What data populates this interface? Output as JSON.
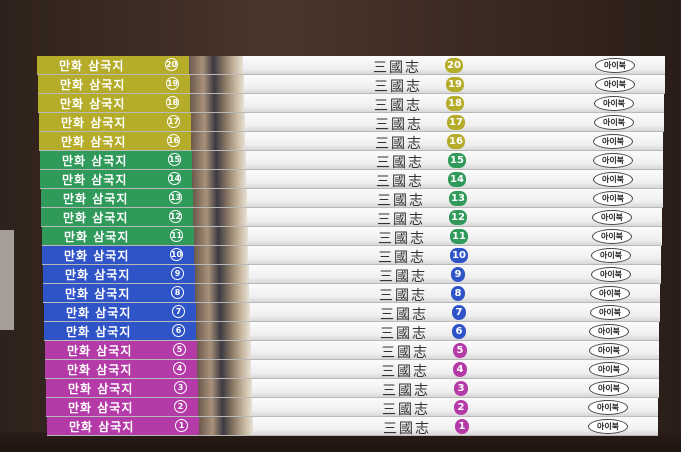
{
  "scene": "manhwa-samgukji-book-stack",
  "series_title": "만화 삼국지",
  "hanja_title": "三國志",
  "publisher": "아이북",
  "colors": {
    "olive": "#b5ad2a",
    "green": "#2f9a5a",
    "blue": "#2f54c8",
    "magenta": "#b43aa8"
  },
  "books": [
    {
      "volume": "20",
      "band": "olive"
    },
    {
      "volume": "19",
      "band": "olive"
    },
    {
      "volume": "18",
      "band": "olive"
    },
    {
      "volume": "17",
      "band": "olive"
    },
    {
      "volume": "16",
      "band": "olive"
    },
    {
      "volume": "15",
      "band": "green"
    },
    {
      "volume": "14",
      "band": "green"
    },
    {
      "volume": "13",
      "band": "green"
    },
    {
      "volume": "12",
      "band": "green"
    },
    {
      "volume": "11",
      "band": "green"
    },
    {
      "volume": "10",
      "band": "blue"
    },
    {
      "volume": "9",
      "band": "blue"
    },
    {
      "volume": "8",
      "band": "blue"
    },
    {
      "volume": "7",
      "band": "blue"
    },
    {
      "volume": "6",
      "band": "blue"
    },
    {
      "volume": "5",
      "band": "magenta"
    },
    {
      "volume": "4",
      "band": "magenta"
    },
    {
      "volume": "3",
      "band": "magenta"
    },
    {
      "volume": "2",
      "band": "magenta"
    },
    {
      "volume": "1",
      "band": "magenta"
    }
  ]
}
